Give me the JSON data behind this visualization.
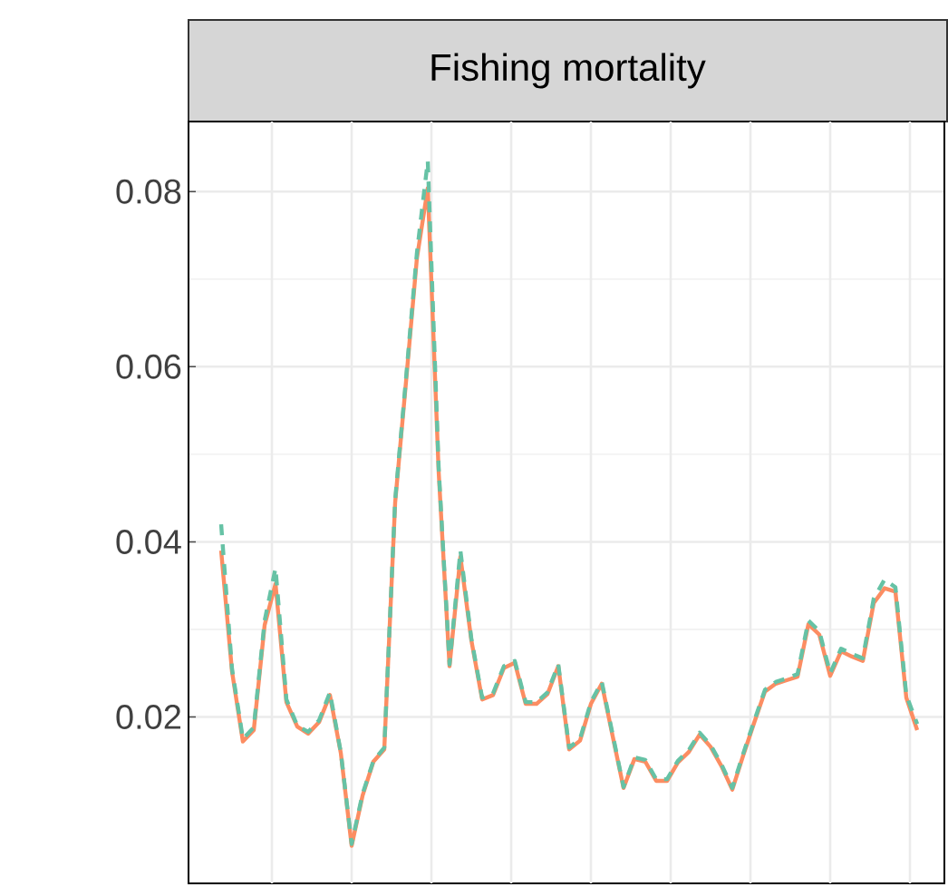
{
  "chart_data": {
    "type": "line",
    "title": "Fishing mortality",
    "categories": [
      null,
      null,
      null,
      null,
      null,
      null,
      null,
      null,
      null,
      null,
      null,
      null,
      null,
      null,
      null,
      null,
      null,
      null,
      null,
      null,
      null,
      null,
      null,
      null,
      null,
      null,
      null,
      null,
      null,
      null,
      null,
      null,
      null,
      null,
      null,
      null,
      null,
      null,
      null,
      null,
      null,
      null,
      null,
      null,
      null,
      null,
      null,
      null,
      null,
      null,
      null,
      null,
      null,
      null,
      null,
      null,
      null,
      null,
      null,
      null,
      null,
      null,
      null,
      null,
      null
    ],
    "series": [
      {
        "color": "#fc8d62",
        "line_style": "solid",
        "values": [
          0.039,
          0.0252,
          0.0172,
          0.0185,
          0.0305,
          0.0352,
          0.0217,
          0.0189,
          0.0181,
          0.0194,
          0.0225,
          0.0159,
          0.0053,
          0.011,
          0.0149,
          0.0163,
          0.0445,
          0.0583,
          0.0724,
          0.0804,
          0.048,
          0.0258,
          0.0383,
          0.0288,
          0.022,
          0.0225,
          0.0256,
          0.0262,
          0.0215,
          0.0215,
          0.0226,
          0.0258,
          0.0163,
          0.0173,
          0.0215,
          0.0238,
          0.0178,
          0.0119,
          0.0152,
          0.0149,
          0.0127,
          0.0127,
          0.0148,
          0.016,
          0.018,
          0.0166,
          0.0144,
          0.0117,
          0.0156,
          0.0193,
          0.0229,
          0.0238,
          0.0242,
          0.0246,
          0.0306,
          0.0294,
          0.0247,
          0.0275,
          0.0269,
          0.0264,
          0.033,
          0.0347,
          0.0343,
          0.0222,
          0.0185
        ]
      },
      {
        "color": "#66c2a5",
        "line_style": "dashed",
        "values": [
          0.042,
          0.0255,
          0.0175,
          0.0188,
          0.031,
          0.037,
          0.022,
          0.019,
          0.0183,
          0.0196,
          0.0228,
          0.016,
          0.0055,
          0.0112,
          0.015,
          0.0165,
          0.0448,
          0.0587,
          0.073,
          0.0835,
          0.0485,
          0.026,
          0.039,
          0.029,
          0.0222,
          0.0227,
          0.0258,
          0.0264,
          0.0217,
          0.0217,
          0.0228,
          0.026,
          0.0165,
          0.0175,
          0.0217,
          0.024,
          0.018,
          0.012,
          0.0154,
          0.0151,
          0.0129,
          0.0129,
          0.015,
          0.0162,
          0.0182,
          0.0168,
          0.0146,
          0.0119,
          0.0158,
          0.0195,
          0.0231,
          0.024,
          0.0244,
          0.0249,
          0.031,
          0.0298,
          0.025,
          0.0278,
          0.0272,
          0.0267,
          0.0335,
          0.0357,
          0.0348,
          0.0225,
          0.0192
        ]
      }
    ],
    "ylim": [
      0.001,
      0.088
    ],
    "yticks": [
      0.02,
      0.04,
      0.06,
      0.08
    ],
    "grid": true,
    "tick_labels": "y"
  }
}
